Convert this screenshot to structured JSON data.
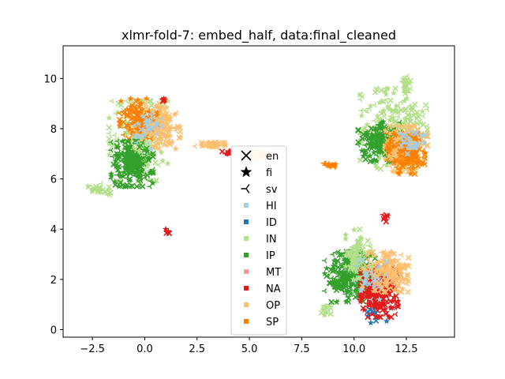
{
  "chart_data": {
    "type": "scatter",
    "title": "xlmr-fold-7: embed_half, data:final_cleaned",
    "xlabel": "",
    "ylabel": "",
    "xlim": [
      -3.9,
      14.8
    ],
    "ylim": [
      -0.3,
      11.3
    ],
    "xticks": [
      -2.5,
      0.0,
      2.5,
      5.0,
      7.5,
      10.0,
      12.5
    ],
    "xtick_labels": [
      "−2.5",
      "0.0",
      "2.5",
      "5.0",
      "7.5",
      "10.0",
      "12.5"
    ],
    "yticks": [
      0,
      2,
      4,
      6,
      8,
      10
    ],
    "ytick_labels": [
      "0",
      "2",
      "4",
      "6",
      "8",
      "10"
    ],
    "grid": false,
    "legend_placement": "center",
    "marker_legend": [
      {
        "label": "en",
        "marker": "x"
      },
      {
        "label": "fi",
        "marker": "star"
      },
      {
        "label": "sv",
        "marker": "tri_left"
      }
    ],
    "color_legend": [
      {
        "label": "HI",
        "color": "#a6cee3"
      },
      {
        "label": "ID",
        "color": "#1f78b4"
      },
      {
        "label": "IN",
        "color": "#b2df8a"
      },
      {
        "label": "IP",
        "color": "#33a02c"
      },
      {
        "label": "MT",
        "color": "#fb9a99"
      },
      {
        "label": "NA",
        "color": "#e31a1c"
      },
      {
        "label": "OP",
        "color": "#fdbf6f"
      },
      {
        "label": "SP",
        "color": "#ff7f00"
      }
    ],
    "clusters": [
      {
        "label": "IN",
        "cx": -0.3,
        "cy": 7.5,
        "rx": 1.4,
        "ry": 1.6,
        "n": 220
      },
      {
        "label": "OP",
        "cx": 0.5,
        "cy": 8.1,
        "rx": 1.2,
        "ry": 0.9,
        "n": 200
      },
      {
        "label": "SP",
        "cx": -0.3,
        "cy": 8.4,
        "rx": 0.9,
        "ry": 0.8,
        "n": 80
      },
      {
        "label": "IP",
        "cx": -0.6,
        "cy": 6.6,
        "rx": 1.0,
        "ry": 0.9,
        "n": 200
      },
      {
        "label": "HI",
        "cx": 0.0,
        "cy": 8.0,
        "rx": 0.8,
        "ry": 0.8,
        "n": 30
      },
      {
        "label": "IN",
        "cx": -2.2,
        "cy": 5.6,
        "rx": 0.7,
        "ry": 0.25,
        "n": 25
      },
      {
        "label": "NA",
        "cx": 1.1,
        "cy": 3.9,
        "rx": 0.1,
        "ry": 0.1,
        "n": 6
      },
      {
        "label": "NA",
        "cx": 0.9,
        "cy": 9.1,
        "rx": 0.15,
        "ry": 0.1,
        "n": 5
      },
      {
        "label": "OP",
        "cx": 3.2,
        "cy": 7.35,
        "rx": 0.8,
        "ry": 0.12,
        "n": 40
      },
      {
        "label": "NA",
        "cx": 3.9,
        "cy": 7.05,
        "rx": 0.2,
        "ry": 0.1,
        "n": 8
      },
      {
        "label": "OP",
        "cx": 5.6,
        "cy": 6.95,
        "rx": 0.7,
        "ry": 0.12,
        "n": 20
      },
      {
        "label": "SP",
        "cx": 8.9,
        "cy": 6.55,
        "rx": 0.4,
        "ry": 0.1,
        "n": 15
      },
      {
        "label": "IN",
        "cx": 11.9,
        "cy": 8.0,
        "rx": 1.6,
        "ry": 1.6,
        "n": 260
      },
      {
        "label": "IP",
        "cx": 11.2,
        "cy": 7.5,
        "rx": 1.0,
        "ry": 0.8,
        "n": 150
      },
      {
        "label": "OP",
        "cx": 12.5,
        "cy": 7.2,
        "rx": 1.0,
        "ry": 0.9,
        "n": 200
      },
      {
        "label": "SP",
        "cx": 12.5,
        "cy": 7.0,
        "rx": 0.9,
        "ry": 0.8,
        "n": 120
      },
      {
        "label": "HI",
        "cx": 12.8,
        "cy": 7.5,
        "rx": 0.6,
        "ry": 0.5,
        "n": 30
      },
      {
        "label": "NA",
        "cx": 11.5,
        "cy": 4.5,
        "rx": 0.15,
        "ry": 0.2,
        "n": 8
      },
      {
        "label": "IN",
        "cx": 12.5,
        "cy": 9.8,
        "rx": 0.2,
        "ry": 0.6,
        "n": 20
      },
      {
        "label": "IP",
        "cx": 9.8,
        "cy": 2.1,
        "rx": 1.2,
        "ry": 1.0,
        "n": 300
      },
      {
        "label": "NA",
        "cx": 11.2,
        "cy": 1.5,
        "rx": 0.9,
        "ry": 1.0,
        "n": 250
      },
      {
        "label": "OP",
        "cx": 11.5,
        "cy": 2.3,
        "rx": 1.1,
        "ry": 0.8,
        "n": 180
      },
      {
        "label": "IN",
        "cx": 10.2,
        "cy": 3.0,
        "rx": 0.6,
        "ry": 1.0,
        "n": 80
      },
      {
        "label": "HI",
        "cx": 10.8,
        "cy": 2.0,
        "rx": 0.8,
        "ry": 0.8,
        "n": 25
      },
      {
        "label": "ID",
        "cx": 11.0,
        "cy": 0.5,
        "rx": 0.6,
        "ry": 0.3,
        "n": 8
      },
      {
        "label": "IN",
        "cx": 8.6,
        "cy": 0.8,
        "rx": 0.3,
        "ry": 0.3,
        "n": 15
      }
    ]
  }
}
